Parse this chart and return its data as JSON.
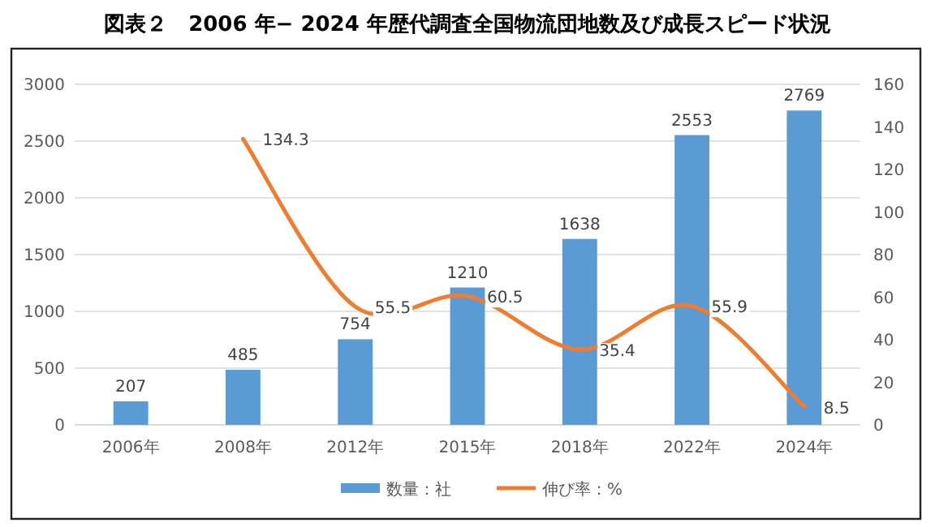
{
  "chart_data": {
    "type": "bar",
    "title": "図表２　2006 年− 2024 年歴代調査全国物流団地数及び成長スピード状況",
    "categories": [
      "2006年",
      "2008年",
      "2012年",
      "2015年",
      "2018年",
      "2022年",
      "2024年"
    ],
    "series": [
      {
        "name": "数量：社",
        "color": "#5b9bd5",
        "values": [
          207,
          485,
          754,
          1210,
          1638,
          2553,
          2769
        ]
      },
      {
        "name": "伸び率：%",
        "type": "line",
        "axis": "y2",
        "color": "#ed7d31",
        "values": [
          null,
          134.3,
          55.5,
          60.5,
          35.4,
          55.9,
          8.5
        ]
      }
    ],
    "ylim": [
      0,
      3000
    ],
    "yticks": [
      0,
      500,
      1000,
      1500,
      2000,
      2500,
      3000
    ],
    "y2lim": [
      0,
      160
    ],
    "y2ticks": [
      0,
      20,
      40,
      60,
      80,
      100,
      120,
      140,
      160
    ],
    "grid": "y",
    "legend": "bottom",
    "data_labels": true,
    "marker": "none",
    "line_style": "solid"
  }
}
